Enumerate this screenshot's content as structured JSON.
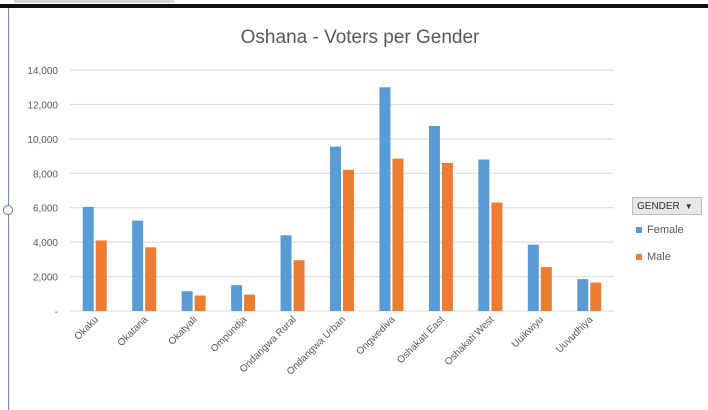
{
  "colors": {
    "female": "#5b9bd5",
    "male": "#ed7d31",
    "grid": "#d9d9d9",
    "axis_text": "#595959"
  },
  "filter_button": {
    "label": "GENDER",
    "icon": "dropdown-arrow-icon"
  },
  "chart_data": {
    "type": "bar",
    "title": "Oshana - Voters per Gender",
    "xlabel": "",
    "ylabel": "",
    "ylim": [
      0,
      14000
    ],
    "yticks": [
      "-",
      "2,000",
      "4,000",
      "6,000",
      "8,000",
      "10,000",
      "12,000",
      "14,000"
    ],
    "grid": true,
    "legend_position": "right",
    "categories": [
      "Okaku",
      "Okatana",
      "Okatyali",
      "Ompundja",
      "Ondangwa Rural",
      "Ondangwa Urban",
      "Ongwediva",
      "Oshakati East",
      "Oshakati West",
      "Uuikwiyu",
      "Uuvudhiya"
    ],
    "series": [
      {
        "name": "Female",
        "values": [
          6050,
          5250,
          1150,
          1500,
          4400,
          9550,
          13000,
          10750,
          8800,
          3850,
          1850
        ]
      },
      {
        "name": "Male",
        "values": [
          4100,
          3700,
          900,
          950,
          2950,
          8200,
          8850,
          8600,
          6300,
          2550,
          1650
        ]
      }
    ]
  }
}
